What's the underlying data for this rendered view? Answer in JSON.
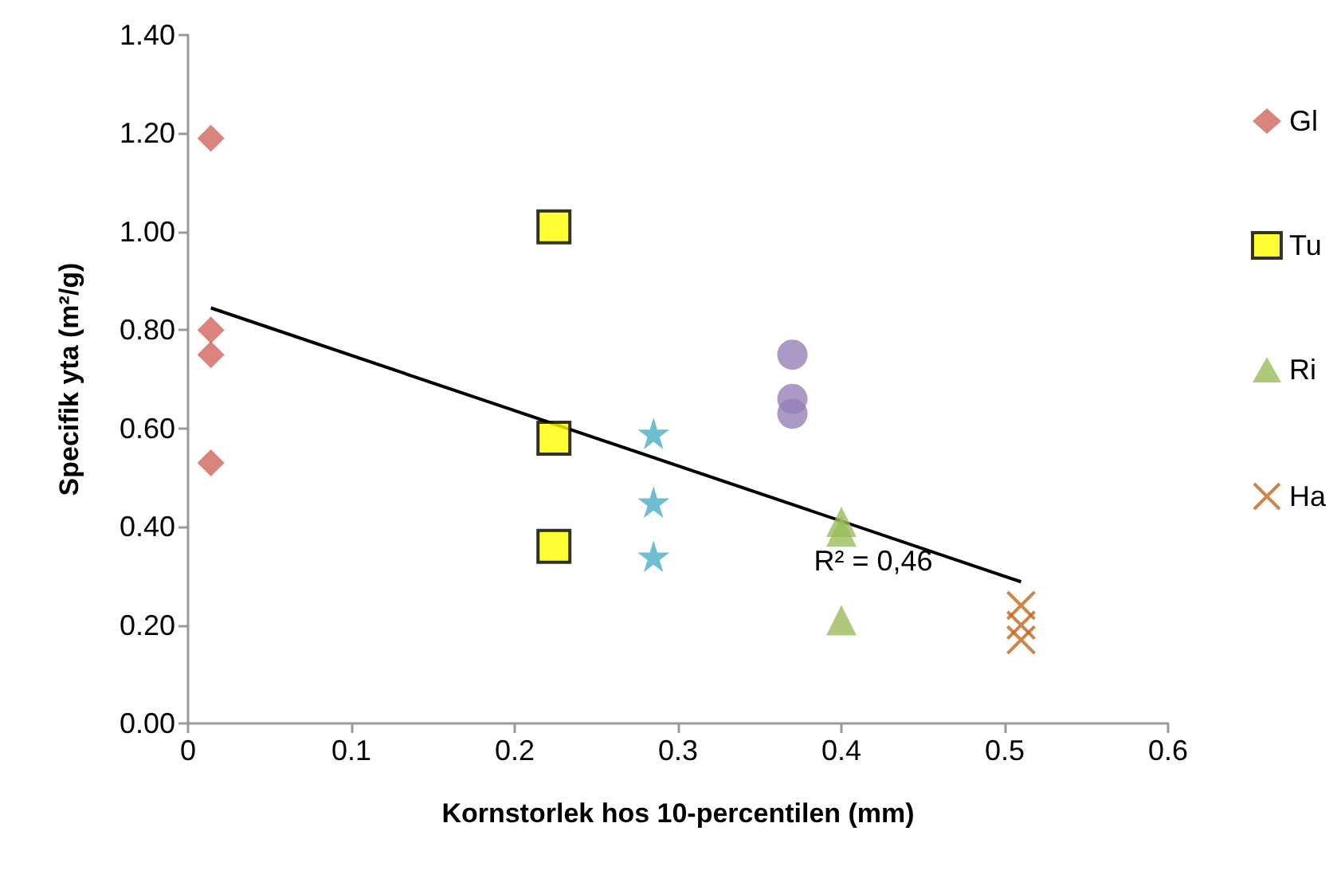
{
  "chart_data": {
    "type": "scatter",
    "xlabel": "Kornstorlek hos 10-percentilen (mm)",
    "ylabel": "Specifik yta (m²/g)",
    "xlim": [
      0,
      0.6
    ],
    "xticks": [
      0,
      0.1,
      0.2,
      0.3,
      0.4,
      0.5,
      0.6
    ],
    "ylim": [
      0,
      1.4
    ],
    "yticks": [
      {
        "value": 0,
        "label": "0.00"
      },
      {
        "value": 0.2,
        "label": "0.20"
      },
      {
        "value": 0.4,
        "label": "0.40"
      },
      {
        "value": 0.6,
        "label": "0.60"
      },
      {
        "value": 0.8,
        "label": "0.80"
      },
      {
        "value": 1.0,
        "label": "1.00"
      },
      {
        "value": 1.2,
        "label": "1.20"
      },
      {
        "value": 1.4,
        "label": "1.40"
      }
    ],
    "grid": false,
    "legend": "right",
    "annotations": [
      "R² = 0,46"
    ],
    "series": [
      {
        "name": "Gl",
        "color": "#d0675e",
        "marker": "diamond",
        "x": [
          0.014,
          0.014,
          0.014,
          0.014
        ],
        "values": [
          1.19,
          0.8,
          0.75,
          0.53
        ]
      },
      {
        "name": "Tu",
        "color": "#ffff00",
        "marker": "square",
        "x": [
          0.224,
          0.224,
          0.224
        ],
        "values": [
          1.01,
          0.58,
          0.36
        ]
      },
      {
        "color": "#4bacc6",
        "marker": "star",
        "x": [
          0.285,
          0.285,
          0.285
        ],
        "values": [
          0.59,
          0.45,
          0.34
        ]
      },
      {
        "color": "#9680b8",
        "marker": "circle",
        "x": [
          0.37,
          0.37,
          0.37
        ],
        "values": [
          0.75,
          0.66,
          0.63
        ]
      },
      {
        "name": "Ri",
        "color": "#9bbb59",
        "marker": "triangle",
        "x": [
          0.4,
          0.4,
          0.4
        ],
        "values": [
          0.41,
          0.39,
          0.21
        ]
      },
      {
        "name": "Ha",
        "color": "#c0661c",
        "marker": "cross",
        "x": [
          0.51,
          0.51,
          0.51
        ],
        "values": [
          0.24,
          0.2,
          0.17
        ]
      },
      {
        "type": "line",
        "color": "#000000",
        "marker": "none",
        "x": [
          0.014,
          0.51
        ],
        "values": [
          0.845,
          0.288
        ]
      }
    ]
  }
}
